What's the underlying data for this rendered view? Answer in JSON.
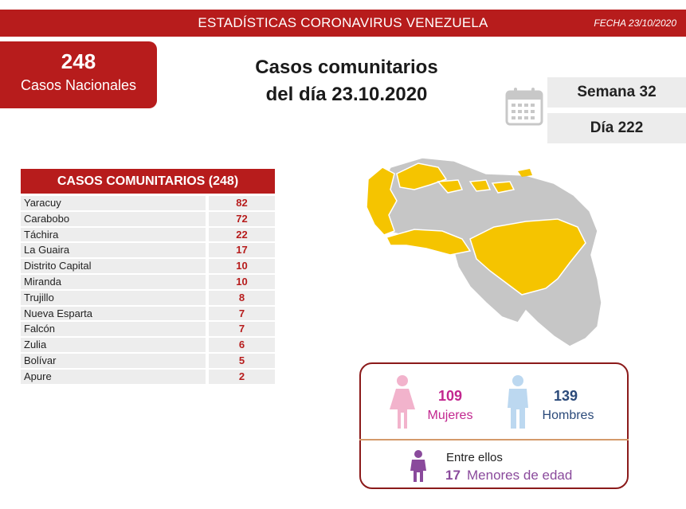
{
  "header": {
    "title": "ESTADÍSTICAS CORONAVIRUS VENEZUELA",
    "date": "FECHA 23/10/2020"
  },
  "national": {
    "count": "248",
    "label": "Casos Nacionales"
  },
  "main_title": {
    "line1": "Casos comunitarios",
    "line2": "del día 23.10.2020"
  },
  "calendar": {
    "icon": "calendar-icon",
    "week": "Semana 32",
    "day": "Día 222"
  },
  "table": {
    "title": "CASOS COMUNITARIOS (248)",
    "rows": [
      {
        "state": "Yaracuy",
        "value": "82"
      },
      {
        "state": "Carabobo",
        "value": "72"
      },
      {
        "state": "Táchira",
        "value": "22"
      },
      {
        "state": "La Guaira",
        "value": "17"
      },
      {
        "state": "Distrito Capital",
        "value": "10"
      },
      {
        "state": "Miranda",
        "value": "10"
      },
      {
        "state": "Trujillo",
        "value": "8"
      },
      {
        "state": "Nueva Esparta",
        "value": "7"
      },
      {
        "state": "Falcón",
        "value": "7"
      },
      {
        "state": "Zulia",
        "value": "6"
      },
      {
        "state": "Bolívar",
        "value": "5"
      },
      {
        "state": "Apure",
        "value": "2"
      }
    ]
  },
  "map": {
    "icon": "venezuela-map",
    "highlight_color": "#f5c400",
    "base_color": "#c6c6c6"
  },
  "gender": {
    "women_count": "109",
    "women_label": "Mujeres",
    "women_icon": "female-icon",
    "men_count": "139",
    "men_label": "Hombres",
    "men_icon": "male-icon",
    "among_label": "Entre ellos",
    "minors_count": "17",
    "minors_label": "Menores de edad",
    "child_icon": "child-icon"
  },
  "colors": {
    "accent": "#b71c1c",
    "women": "#c2278f",
    "men": "#2b4a7a",
    "minors": "#8a4a9c"
  }
}
